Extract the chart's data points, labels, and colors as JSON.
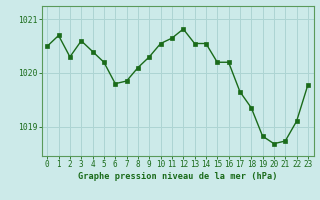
{
  "x": [
    0,
    1,
    2,
    3,
    4,
    5,
    6,
    7,
    8,
    9,
    10,
    11,
    12,
    13,
    14,
    15,
    16,
    17,
    18,
    19,
    20,
    21,
    22,
    23
  ],
  "y": [
    1020.5,
    1020.7,
    1020.3,
    1020.6,
    1020.4,
    1020.2,
    1019.8,
    1019.85,
    1020.1,
    1020.3,
    1020.55,
    1020.65,
    1020.82,
    1020.55,
    1020.55,
    1020.2,
    1020.2,
    1019.65,
    1019.35,
    1018.82,
    1018.68,
    1018.73,
    1019.1,
    1019.78
  ],
  "line_color": "#1a6b1a",
  "marker_color": "#1a6b1a",
  "bg_color": "#cceae9",
  "grid_color": "#add4d3",
  "border_color": "#5a9a5a",
  "xlabel": "Graphe pression niveau de la mer (hPa)",
  "xlabel_color": "#1a6b1a",
  "ylabel_ticks": [
    1019,
    1020,
    1021
  ],
  "ylim": [
    1018.45,
    1021.25
  ],
  "xlim": [
    -0.5,
    23.5
  ],
  "tick_label_color": "#1a6b1a",
  "tick_fontsize": 5.5,
  "xlabel_fontsize": 6.2,
  "linewidth": 1.0,
  "markersize": 2.2
}
